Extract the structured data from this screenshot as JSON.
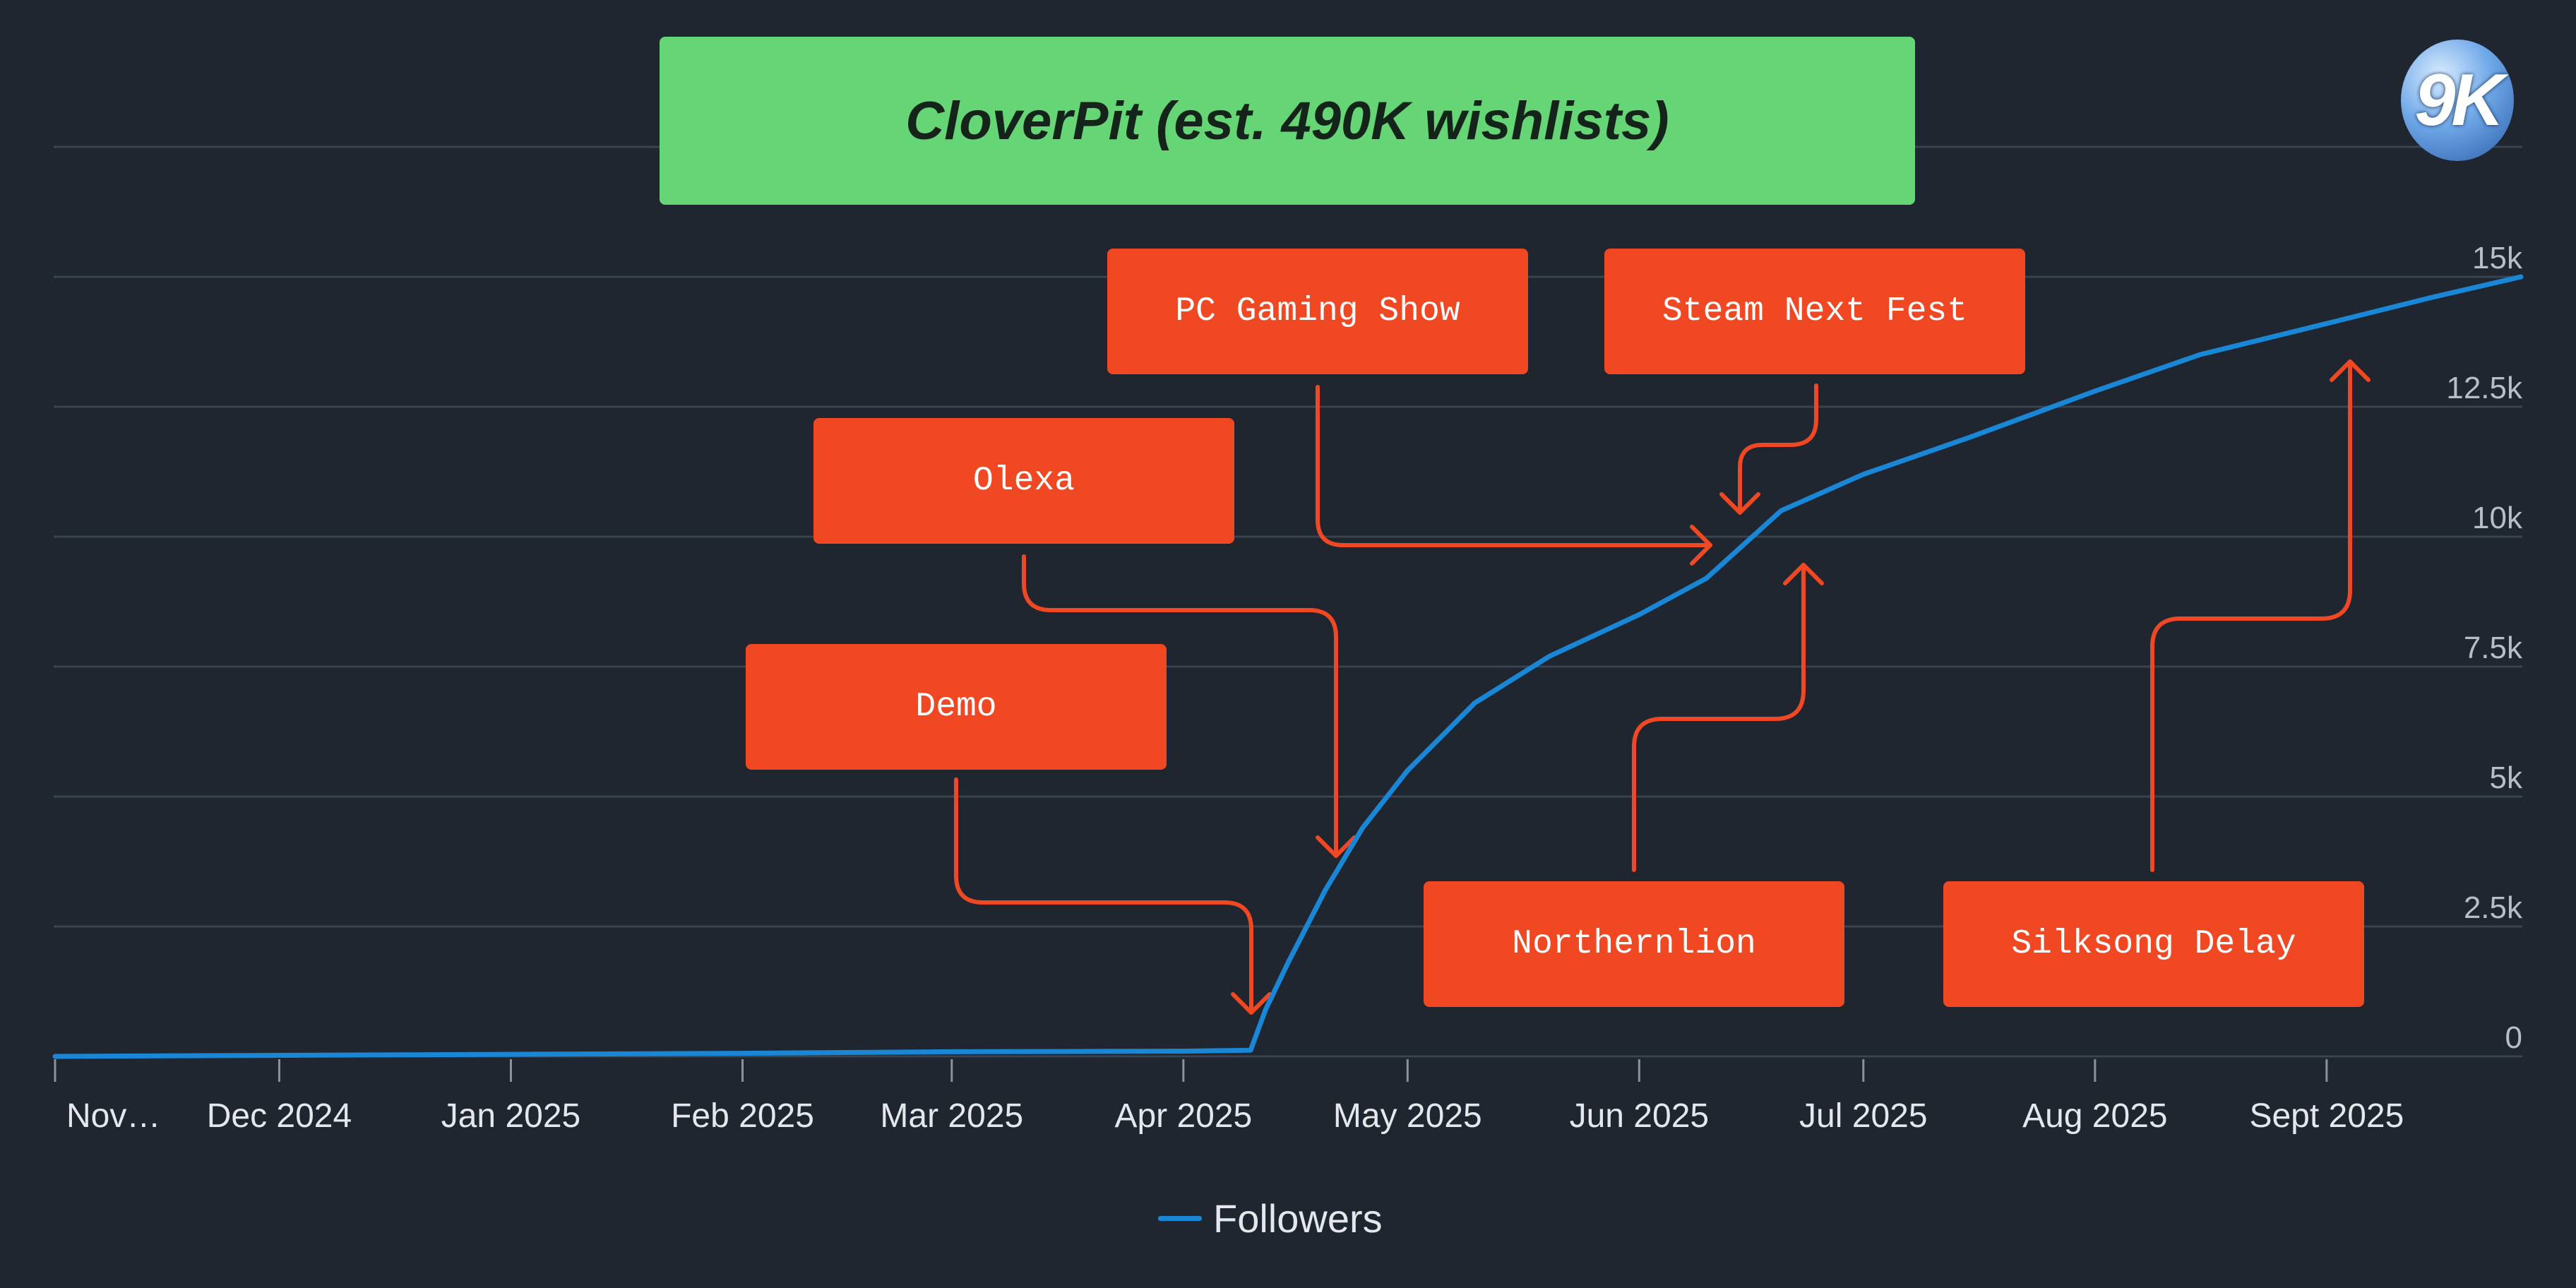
{
  "header": {
    "title": "CloverPit (est. 490K wishlists)",
    "logo_text": "9K"
  },
  "annotations": [
    {
      "id": "pc-gaming-show",
      "label": "PC Gaming Show"
    },
    {
      "id": "steam-next-fest",
      "label": "Steam Next Fest"
    },
    {
      "id": "olexa",
      "label": "Olexa"
    },
    {
      "id": "demo",
      "label": "Demo"
    },
    {
      "id": "northernlion",
      "label": "Northernlion"
    },
    {
      "id": "silksong-delay",
      "label": "Silksong Delay"
    }
  ],
  "legend": {
    "label": "Followers"
  },
  "colors": {
    "background": "#1f2630",
    "line": "#1a86d6",
    "annotation": "#f04822",
    "title_box": "#66d575"
  },
  "chart_data": {
    "type": "line",
    "title": "CloverPit (est. 490K wishlists)",
    "xlabel": "",
    "ylabel": "",
    "y_ticks": [
      0,
      2500,
      5000,
      7500,
      10000,
      12500,
      15000
    ],
    "y_tick_labels": [
      "0",
      "2.5k",
      "5k",
      "7.5k",
      "10k",
      "12.5k",
      "15k"
    ],
    "ylim": [
      0,
      17500
    ],
    "x_tick_labels": [
      "Nov…",
      "Dec 2024",
      "Jan 2025",
      "Feb 2025",
      "Mar 2025",
      "Apr 2025",
      "May 2025",
      "Jun 2025",
      "Jul 2025",
      "Aug 2025",
      "Sept 2025"
    ],
    "x_range": [
      "2024-11-01",
      "2025-09-27"
    ],
    "grid": true,
    "legend_position": "bottom-center",
    "series": [
      {
        "name": "Followers",
        "points": [
          [
            "2024-11-01",
            0
          ],
          [
            "2024-12-01",
            20
          ],
          [
            "2025-01-01",
            40
          ],
          [
            "2025-02-01",
            60
          ],
          [
            "2025-03-01",
            90
          ],
          [
            "2025-04-01",
            100
          ],
          [
            "2025-04-10",
            120
          ],
          [
            "2025-04-12",
            900
          ],
          [
            "2025-04-15",
            1800
          ],
          [
            "2025-04-20",
            3200
          ],
          [
            "2025-04-25",
            4400
          ],
          [
            "2025-05-01",
            5500
          ],
          [
            "2025-05-10",
            6800
          ],
          [
            "2025-05-20",
            7700
          ],
          [
            "2025-06-01",
            8500
          ],
          [
            "2025-06-10",
            9200
          ],
          [
            "2025-06-20",
            10500
          ],
          [
            "2025-07-01",
            11200
          ],
          [
            "2025-07-15",
            11900
          ],
          [
            "2025-08-01",
            12800
          ],
          [
            "2025-08-15",
            13500
          ],
          [
            "2025-09-01",
            14100
          ],
          [
            "2025-09-15",
            14600
          ],
          [
            "2025-09-27",
            15000
          ]
        ]
      }
    ]
  }
}
